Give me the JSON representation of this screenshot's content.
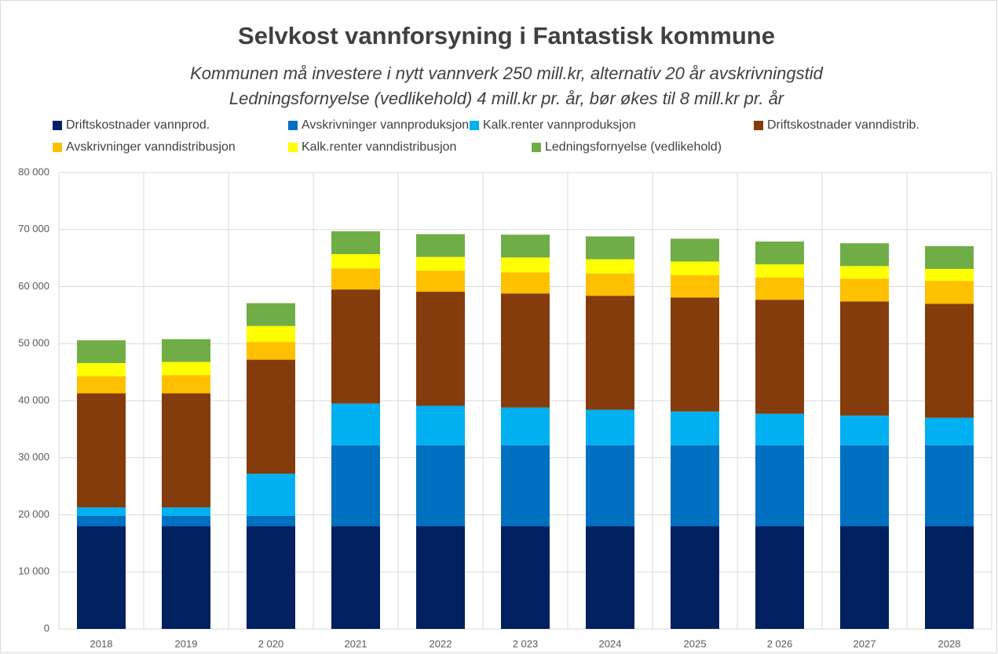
{
  "chart_data": {
    "type": "bar",
    "stacked": true,
    "title": "Selvkost vannforsyning i Fantastisk kommune",
    "subtitle": [
      "Kommunen må investere i nytt vannverk 250 mill.kr, alternativ 20 år avskrivningstid",
      "Ledningsfornyelse (vedlikehold) 4 mill.kr pr. år, bør økes til 8 mill.kr pr. år"
    ],
    "categories": [
      "2018",
      "2019",
      "2 020",
      "2021",
      "2022",
      "2 023",
      "2024",
      "2025",
      "2 026",
      "2027",
      "2028"
    ],
    "series": [
      {
        "name": "Driftskostnader vannprod.",
        "color": "#002060",
        "values": [
          18000,
          18000,
          18000,
          18000,
          18000,
          18000,
          18000,
          18000,
          18000,
          18000,
          18000
        ]
      },
      {
        "name": "Avskrivninger vannproduksjon",
        "color": "#0070c0",
        "values": [
          1800,
          1800,
          1800,
          14200,
          14200,
          14200,
          14200,
          14200,
          14200,
          14200,
          14200
        ]
      },
      {
        "name": "Kalk.renter vannproduksjon",
        "color": "#00b0f0",
        "values": [
          1500,
          1500,
          7400,
          7300,
          6900,
          6600,
          6200,
          5900,
          5500,
          5200,
          4800
        ]
      },
      {
        "name": "Driftskostnader vanndistrib.",
        "color": "#843c0c",
        "values": [
          20000,
          20000,
          20000,
          20000,
          20000,
          20000,
          20000,
          20000,
          20000,
          20000,
          20000
        ]
      },
      {
        "name": "Avskrivninger vanndistribusjon",
        "color": "#ffc000",
        "values": [
          3000,
          3200,
          3100,
          3700,
          3700,
          3700,
          3900,
          3900,
          3900,
          4000,
          4000
        ]
      },
      {
        "name": "Kalk.renter vanndistribusjon",
        "color": "#ffff00",
        "values": [
          2300,
          2300,
          2800,
          2500,
          2400,
          2600,
          2500,
          2400,
          2300,
          2200,
          2100
        ]
      },
      {
        "name": "Ledningsfornyelse (vedlikehold)",
        "color": "#70ad47",
        "values": [
          4000,
          4000,
          4000,
          4000,
          4000,
          4000,
          4000,
          4000,
          4000,
          4000,
          4000
        ]
      }
    ],
    "ylim": [
      0,
      80000
    ],
    "yticks": [
      0,
      {
        "value": 10000,
        "label": "10 000"
      },
      {
        "value": 20000,
        "label": "20 000"
      },
      {
        "value": 30000,
        "label": "30 000"
      },
      {
        "value": 40000,
        "label": "40 000"
      },
      {
        "value": 50000,
        "label": "50 000"
      },
      {
        "value": 60000,
        "label": "60 000"
      },
      {
        "value": 70000,
        "label": "70 000"
      },
      {
        "value": 80000,
        "label": "80 000"
      }
    ],
    "grid": true,
    "legend": "top"
  }
}
